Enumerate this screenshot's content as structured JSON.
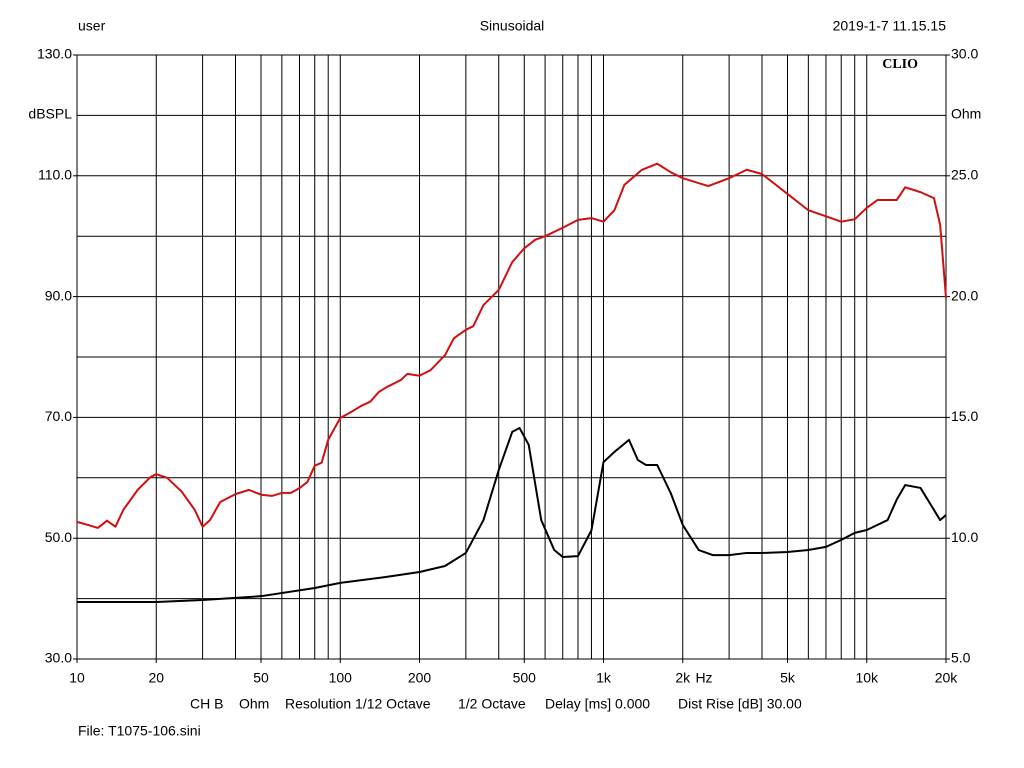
{
  "chart_data": {
    "type": "line",
    "header_left": "user",
    "title": "Sinusoidal",
    "header_right": "2019-1-7 11.15.15",
    "brand": "CLIO",
    "ylabel": "dBSPL",
    "y2label": "Ohm",
    "xlabel": "Hz",
    "footer_items": [
      "CH B",
      "Ohm",
      "Resolution 1/12 Octave",
      "1/2 Octave",
      "Delay [ms] 0.000",
      "Dist Rise [dB] 30.00"
    ],
    "file": "File: T1075-106.sini",
    "log_x": true,
    "xlim": [
      10,
      20000
    ],
    "xticks": [
      10,
      20,
      50,
      100,
      200,
      500,
      {
        "value": 1000,
        "label": "1k"
      },
      {
        "value": 2000,
        "label": "2k"
      },
      {
        "value": 5000,
        "label": "5k"
      },
      {
        "value": 10000,
        "label": "10k"
      },
      {
        "value": 20000,
        "label": "20k"
      }
    ],
    "xgrid": [
      20,
      30,
      40,
      50,
      60,
      70,
      80,
      90,
      100,
      200,
      300,
      400,
      500,
      600,
      700,
      800,
      900,
      1000,
      2000,
      3000,
      4000,
      5000,
      6000,
      7000,
      8000,
      9000,
      10000
    ],
    "ylim": [
      30,
      130
    ],
    "yticks": [
      {
        "value": 30,
        "label": "30.0"
      },
      {
        "value": 50,
        "label": "50.0"
      },
      {
        "value": 70,
        "label": "70.0"
      },
      {
        "value": 90,
        "label": "90.0"
      },
      {
        "value": 110,
        "label": "110.0"
      },
      {
        "value": 130,
        "label": "130.0"
      }
    ],
    "ygrid": [
      40,
      50,
      60,
      70,
      80,
      90,
      100,
      110,
      120
    ],
    "y2lim": [
      5,
      30
    ],
    "y2ticks": [
      {
        "value": 5,
        "label": "5.0"
      },
      {
        "value": 10,
        "label": "10.0"
      },
      {
        "value": 15,
        "label": "15.0"
      },
      {
        "value": 20,
        "label": "20.0"
      },
      {
        "value": 25,
        "label": "25.0"
      },
      {
        "value": 30,
        "label": "30.0"
      }
    ],
    "grid": true,
    "series": [
      {
        "color": "#d01010",
        "axis": "y",
        "x": [
          10,
          11,
          12,
          13,
          14,
          15,
          17,
          19,
          20,
          22,
          25,
          28,
          30,
          32,
          35,
          40,
          45,
          50,
          55,
          60,
          65,
          70,
          75,
          80,
          85,
          90,
          100,
          110,
          120,
          130,
          140,
          150,
          170,
          180,
          200,
          220,
          250,
          270,
          300,
          320,
          350,
          400,
          450,
          500,
          550,
          600,
          700,
          800,
          900,
          1000,
          1100,
          1200,
          1400,
          1600,
          1800,
          2000,
          2500,
          3000,
          3500,
          4000,
          5000,
          6000,
          7000,
          8000,
          9000,
          10000,
          11000,
          13000,
          14000,
          16000,
          18000,
          19000,
          20000
        ],
        "values": [
          52.7,
          52.2,
          51.7,
          52.9,
          51.9,
          54.7,
          58,
          60.1,
          60.6,
          60,
          57.7,
          54.7,
          51.9,
          53,
          56,
          57.3,
          58,
          57.2,
          57,
          57.5,
          57.5,
          58.3,
          59.3,
          62,
          62.5,
          66.3,
          69.9,
          70.9,
          71.9,
          72.6,
          74.2,
          75,
          76.2,
          77.2,
          76.9,
          77.8,
          80.3,
          83.1,
          84.5,
          85.1,
          88.6,
          91.1,
          95.7,
          98,
          99.4,
          100,
          101.4,
          102.7,
          103,
          102.4,
          104.3,
          108.5,
          111,
          112,
          110.6,
          109.6,
          108.3,
          109.6,
          111,
          110.3,
          107,
          104.3,
          103.3,
          102.4,
          102.8,
          104.7,
          106,
          106,
          108.1,
          107.3,
          106.3,
          101.9,
          89.8
        ]
      },
      {
        "color": "#000000",
        "axis": "y2",
        "x": [
          10,
          20,
          30,
          50,
          80,
          100,
          150,
          200,
          250,
          300,
          350,
          400,
          450,
          480,
          520,
          580,
          650,
          700,
          800,
          900,
          1000,
          1100,
          1250,
          1350,
          1450,
          1600,
          1800,
          2000,
          2300,
          2600,
          3000,
          3500,
          4000,
          5000,
          6000,
          7000,
          8000,
          9000,
          10000,
          12000,
          13000,
          14000,
          16000,
          18000,
          19000,
          20000
        ],
        "values": [
          7.36,
          7.36,
          7.44,
          7.6,
          7.94,
          8.15,
          8.4,
          8.6,
          8.85,
          9.39,
          10.75,
          12.82,
          14.4,
          14.56,
          13.86,
          10.75,
          9.51,
          9.22,
          9.26,
          10.33,
          13.15,
          13.57,
          14.07,
          13.24,
          13.03,
          13.03,
          11.87,
          10.55,
          9.51,
          9.3,
          9.3,
          9.39,
          9.39,
          9.43,
          9.51,
          9.64,
          9.93,
          10.22,
          10.34,
          10.75,
          11.6,
          12.2,
          12.08,
          11.17,
          10.75,
          10.96
        ]
      }
    ]
  }
}
